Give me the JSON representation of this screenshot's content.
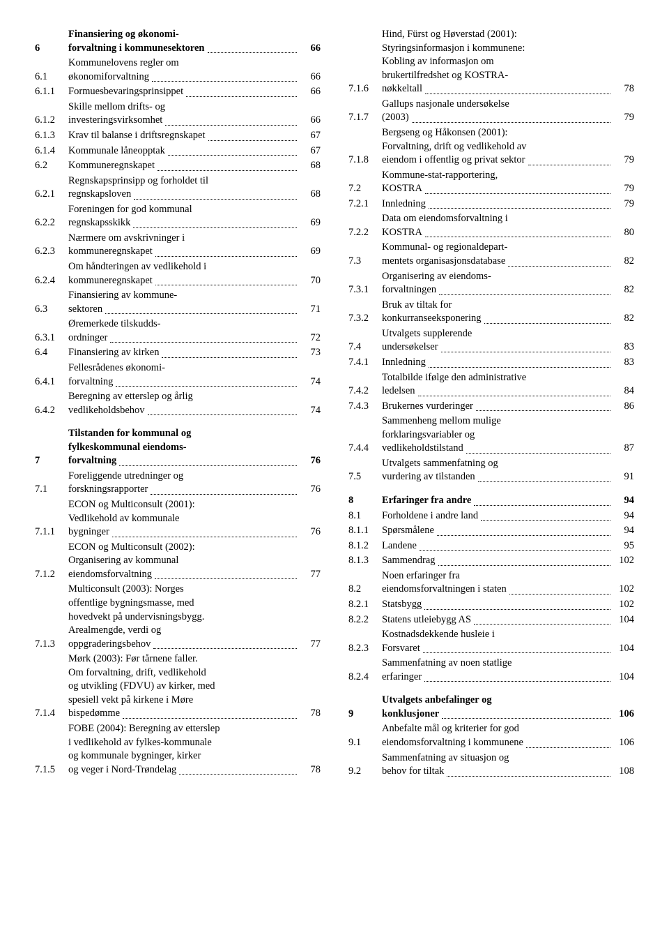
{
  "left": [
    {
      "n": "6",
      "t": [
        "Finansiering og økonomi-",
        "forvaltning i kommunesektoren"
      ],
      "p": "66",
      "bold": true
    },
    {
      "n": "6.1",
      "t": [
        "Kommunelovens regler om",
        "økonomiforvaltning"
      ],
      "p": "66"
    },
    {
      "n": "6.1.1",
      "t": [
        "Formuesbevaringsprinsippet"
      ],
      "p": "66"
    },
    {
      "n": "6.1.2",
      "t": [
        "Skille mellom drifts- og",
        "investeringsvirksomhet"
      ],
      "p": "66"
    },
    {
      "n": "6.1.3",
      "t": [
        "Krav til balanse i driftsregnskapet"
      ],
      "p": "67"
    },
    {
      "n": "6.1.4",
      "t": [
        "Kommunale låneopptak"
      ],
      "p": "67"
    },
    {
      "n": "6.2",
      "t": [
        "Kommuneregnskapet"
      ],
      "p": "68"
    },
    {
      "n": "6.2.1",
      "t": [
        "Regnskapsprinsipp og forholdet til",
        "regnskapsloven"
      ],
      "p": "68"
    },
    {
      "n": "6.2.2",
      "t": [
        "Foreningen for god kommunal",
        "regnskapsskikk"
      ],
      "p": "69"
    },
    {
      "n": "6.2.3",
      "t": [
        "Nærmere om avskrivninger i",
        "kommuneregnskapet"
      ],
      "p": "69"
    },
    {
      "n": "6.2.4",
      "t": [
        "Om håndteringen av vedlikehold i",
        "kommuneregnskapet"
      ],
      "p": "70"
    },
    {
      "n": "6.3",
      "t": [
        "Finansiering av kommune-",
        "sektoren"
      ],
      "p": "71"
    },
    {
      "n": "6.3.1",
      "t": [
        "Øremerkede tilskudds-",
        "ordninger"
      ],
      "p": "72"
    },
    {
      "n": "6.4",
      "t": [
        "Finansiering av kirken"
      ],
      "p": "73"
    },
    {
      "n": "6.4.1",
      "t": [
        "Fellesrådenes økonomi-",
        "forvaltning"
      ],
      "p": "74"
    },
    {
      "n": "6.4.2",
      "t": [
        "Beregning av etterslep og årlig",
        "vedlikeholdsbehov"
      ],
      "p": "74"
    },
    {
      "n": "7",
      "t": [
        "Tilstanden for kommunal og",
        "fylkeskommunal eiendoms-",
        "forvaltning"
      ],
      "p": "76",
      "bold": true,
      "gap": true
    },
    {
      "n": "7.1",
      "t": [
        "Foreliggende utredninger og",
        "forskningsrapporter"
      ],
      "p": "76"
    },
    {
      "n": "7.1.1",
      "t": [
        "ECON og Multiconsult (2001):",
        "Vedlikehold av kommunale",
        "bygninger"
      ],
      "p": "76"
    },
    {
      "n": "7.1.2",
      "t": [
        "ECON og Multiconsult (2002):",
        "Organisering av kommunal",
        "eiendomsforvaltning"
      ],
      "p": "77"
    },
    {
      "n": "7.1.3",
      "t": [
        "Multiconsult (2003): Norges",
        "offentlige bygningsmasse, med",
        "hovedvekt på undervisningsbygg.",
        "Arealmengde, verdi og",
        "oppgraderingsbehov"
      ],
      "p": "77"
    },
    {
      "n": "7.1.4",
      "t": [
        "Mørk (2003): Før tårnene faller.",
        "Om forvaltning, drift, vedlikehold",
        "og utvikling (FDVU) av kirker, med",
        "spesiell vekt på kirkene i Møre",
        "bispedømme"
      ],
      "p": "78"
    },
    {
      "n": "7.1.5",
      "t": [
        "FOBE (2004): Beregning av etterslep",
        "i vedlikehold av fylkes-kommunale",
        "og kommunale bygninger, kirker",
        "og veger i Nord-Trøndelag"
      ],
      "p": "78"
    }
  ],
  "right": [
    {
      "n": "7.1.6",
      "t": [
        "Hind, Fürst og Høverstad (2001):",
        "Styringsinformasjon i kommunene:",
        "Kobling av informasjon om",
        "brukertilfredshet og KOSTRA-",
        "nøkkeltall"
      ],
      "p": "78"
    },
    {
      "n": "7.1.7",
      "t": [
        "Gallups nasjonale undersøkelse",
        "(2003)"
      ],
      "p": "79"
    },
    {
      "n": "7.1.8",
      "t": [
        "Bergseng og Håkonsen (2001):",
        "Forvaltning, drift og vedlikehold av",
        "eiendom i offentlig og privat sektor"
      ],
      "p": "79"
    },
    {
      "n": "7.2",
      "t": [
        "Kommune-stat-rapportering,",
        "KOSTRA"
      ],
      "p": "79"
    },
    {
      "n": "7.2.1",
      "t": [
        "Innledning"
      ],
      "p": "79"
    },
    {
      "n": "7.2.2",
      "t": [
        "Data om eiendomsforvaltning i",
        "KOSTRA"
      ],
      "p": "80"
    },
    {
      "n": "7.3",
      "t": [
        "Kommunal- og regionaldepart-",
        "mentets organisasjonsdatabase"
      ],
      "p": "82"
    },
    {
      "n": "7.3.1",
      "t": [
        "Organisering av eiendoms-",
        "forvaltningen"
      ],
      "p": "82"
    },
    {
      "n": "7.3.2",
      "t": [
        "Bruk av tiltak for",
        "konkurranseeksponering"
      ],
      "p": "82"
    },
    {
      "n": "7.4",
      "t": [
        "Utvalgets supplerende",
        "undersøkelser"
      ],
      "p": "83"
    },
    {
      "n": "7.4.1",
      "t": [
        "Innledning"
      ],
      "p": "83"
    },
    {
      "n": "7.4.2",
      "t": [
        "Totalbilde ifølge den administrative",
        "ledelsen"
      ],
      "p": "84"
    },
    {
      "n": "7.4.3",
      "t": [
        "Brukernes vurderinger"
      ],
      "p": "86"
    },
    {
      "n": "7.4.4",
      "t": [
        "Sammenheng mellom mulige",
        "forklaringsvariabler og",
        "vedlikeholdstilstand"
      ],
      "p": "87"
    },
    {
      "n": "7.5",
      "t": [
        "Utvalgets sammenfatning og",
        "vurdering av tilstanden"
      ],
      "p": "91"
    },
    {
      "n": "8",
      "t": [
        "Erfaringer fra andre"
      ],
      "p": "94",
      "bold": true,
      "gap": true
    },
    {
      "n": "8.1",
      "t": [
        "Forholdene i andre land"
      ],
      "p": "94"
    },
    {
      "n": "8.1.1",
      "t": [
        "Spørsmålene"
      ],
      "p": "94"
    },
    {
      "n": "8.1.2",
      "t": [
        "Landene"
      ],
      "p": "95"
    },
    {
      "n": "8.1.3",
      "t": [
        "Sammendrag"
      ],
      "p": "102"
    },
    {
      "n": "8.2",
      "t": [
        "Noen erfaringer fra",
        "eiendomsforvaltningen i staten"
      ],
      "p": "102"
    },
    {
      "n": "8.2.1",
      "t": [
        "Statsbygg"
      ],
      "p": "102"
    },
    {
      "n": "8.2.2",
      "t": [
        "Statens utleiebygg AS"
      ],
      "p": "104"
    },
    {
      "n": "8.2.3",
      "t": [
        "Kostnadsdekkende husleie i",
        "Forsvaret"
      ],
      "p": "104"
    },
    {
      "n": "8.2.4",
      "t": [
        "Sammenfatning av noen statlige",
        "erfaringer"
      ],
      "p": "104"
    },
    {
      "n": "9",
      "t": [
        "Utvalgets anbefalinger og",
        "konklusjoner"
      ],
      "p": "106",
      "bold": true,
      "gap": true
    },
    {
      "n": "9.1",
      "t": [
        "Anbefalte mål og kriterier for god",
        "eiendomsforvaltning i kommunene"
      ],
      "p": "106"
    },
    {
      "n": "9.2",
      "t": [
        "Sammenfatning av situasjon og",
        "behov for tiltak"
      ],
      "p": "108"
    }
  ]
}
